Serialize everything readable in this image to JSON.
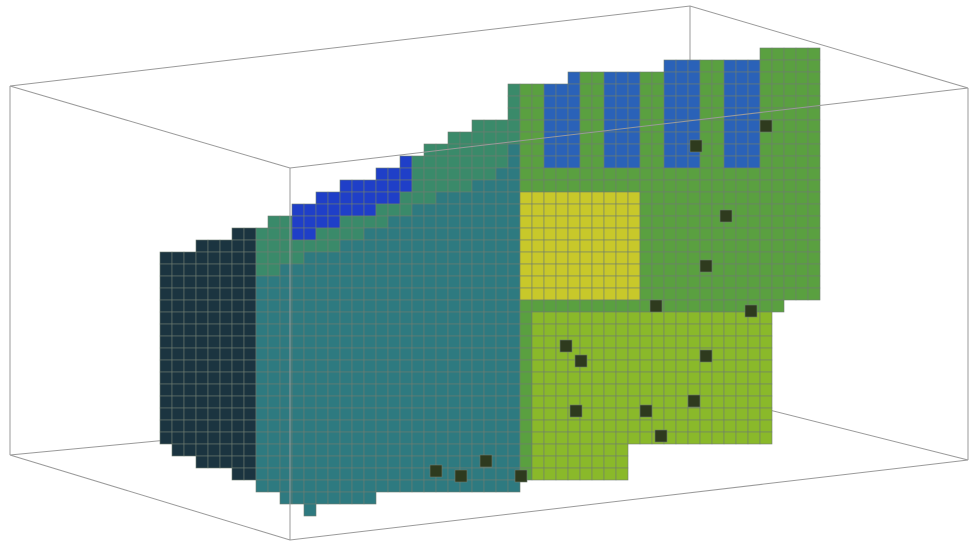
{
  "scene": {
    "kind": "voxel-volume-render",
    "bounding_box": true,
    "colormap": [
      "#1b3440",
      "#2e7a80",
      "#3a8a6a",
      "#5aa040",
      "#8ab92a",
      "#c8c82a",
      "#1f3fc8",
      "#2a62b8"
    ],
    "voxel_edge_color": "#6e7c70"
  }
}
